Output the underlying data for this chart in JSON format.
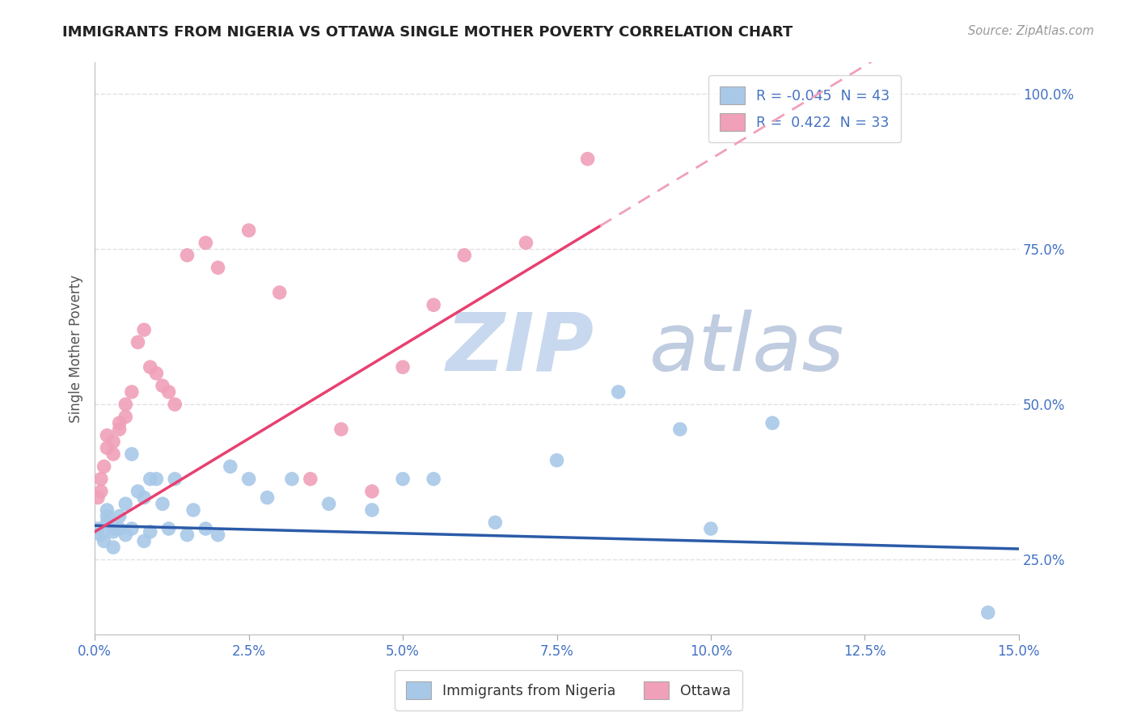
{
  "title": "IMMIGRANTS FROM NIGERIA VS OTTAWA SINGLE MOTHER POVERTY CORRELATION CHART",
  "source": "Source: ZipAtlas.com",
  "xlabel_blue": "Immigrants from Nigeria",
  "xlabel_pink": "Ottawa",
  "ylabel": "Single Mother Poverty",
  "legend_blue_r": "-0.045",
  "legend_blue_n": "43",
  "legend_pink_r": "0.422",
  "legend_pink_n": "33",
  "xlim": [
    0.0,
    0.15
  ],
  "ylim": [
    0.13,
    1.05
  ],
  "xticks": [
    0.0,
    0.025,
    0.05,
    0.075,
    0.1,
    0.125,
    0.15
  ],
  "xtick_labels": [
    "0.0%",
    "2.5%",
    "5.0%",
    "7.5%",
    "10.0%",
    "12.5%",
    "15.0%"
  ],
  "yticks_right": [
    0.25,
    0.5,
    0.75,
    1.0
  ],
  "ytick_labels_right": [
    "25.0%",
    "50.0%",
    "75.0%",
    "100.0%"
  ],
  "blue_scatter_x": [
    0.0005,
    0.001,
    0.0015,
    0.002,
    0.002,
    0.002,
    0.003,
    0.003,
    0.003,
    0.004,
    0.004,
    0.005,
    0.005,
    0.006,
    0.006,
    0.007,
    0.008,
    0.008,
    0.009,
    0.009,
    0.01,
    0.011,
    0.012,
    0.013,
    0.015,
    0.016,
    0.018,
    0.02,
    0.022,
    0.025,
    0.028,
    0.032,
    0.038,
    0.045,
    0.05,
    0.055,
    0.065,
    0.075,
    0.085,
    0.095,
    0.1,
    0.11,
    0.145
  ],
  "blue_scatter_y": [
    0.3,
    0.29,
    0.28,
    0.33,
    0.32,
    0.31,
    0.3,
    0.295,
    0.27,
    0.32,
    0.3,
    0.29,
    0.34,
    0.3,
    0.42,
    0.36,
    0.28,
    0.35,
    0.295,
    0.38,
    0.38,
    0.34,
    0.3,
    0.38,
    0.29,
    0.33,
    0.3,
    0.29,
    0.4,
    0.38,
    0.35,
    0.38,
    0.34,
    0.33,
    0.38,
    0.38,
    0.31,
    0.41,
    0.52,
    0.46,
    0.3,
    0.47,
    0.165
  ],
  "pink_scatter_x": [
    0.0005,
    0.001,
    0.001,
    0.0015,
    0.002,
    0.002,
    0.003,
    0.003,
    0.004,
    0.004,
    0.005,
    0.005,
    0.006,
    0.007,
    0.008,
    0.009,
    0.01,
    0.011,
    0.012,
    0.013,
    0.015,
    0.018,
    0.02,
    0.025,
    0.03,
    0.035,
    0.04,
    0.045,
    0.05,
    0.055,
    0.06,
    0.07,
    0.08
  ],
  "pink_scatter_y": [
    0.35,
    0.36,
    0.38,
    0.4,
    0.43,
    0.45,
    0.42,
    0.44,
    0.46,
    0.47,
    0.48,
    0.5,
    0.52,
    0.6,
    0.62,
    0.56,
    0.55,
    0.53,
    0.52,
    0.5,
    0.74,
    0.76,
    0.72,
    0.78,
    0.68,
    0.38,
    0.46,
    0.36,
    0.56,
    0.66,
    0.74,
    0.76,
    0.895
  ],
  "blue_color": "#A8C8E8",
  "pink_color": "#F0A0B8",
  "blue_line_color": "#2B5BA8",
  "pink_line_color": "#E84070",
  "pink_dash_color": "#F0A0B8",
  "background_color": "#FFFFFF",
  "grid_color": "#E0E0E8",
  "grid_style": "--",
  "title_color": "#222222",
  "axis_label_color": "#555555",
  "right_axis_color": "#4472C4",
  "bottom_axis_color": "#4472C4",
  "watermark_zip_color": "#C8D8EE",
  "watermark_atlas_color": "#C0CCE0",
  "legend_box_color": "#cccccc"
}
